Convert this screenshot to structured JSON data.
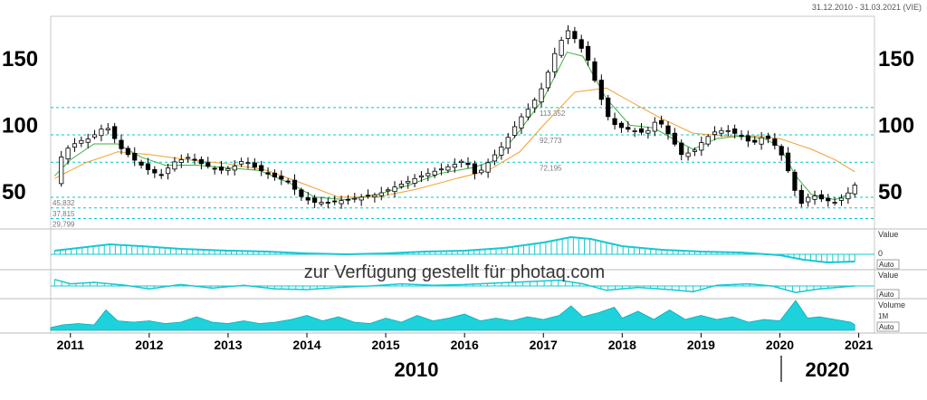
{
  "header": {
    "date_range": "31.12.2010 - 31.03.2021 (VIE)"
  },
  "watermark": "zur Verfügung gestellt für photaq.com",
  "colors": {
    "up_candle": "#ffffff",
    "down_candle": "#000000",
    "ma_short": "#3fae3f",
    "ma_long": "#f0a030",
    "level_lines": "#00c8d0",
    "oscillator": "#16c8d2",
    "volume_fill": "#1ed2dc"
  },
  "bottom_labels": {
    "left_era": "2010",
    "right_era": "2020"
  },
  "panels": {
    "macd": {
      "label": "Value",
      "zero_label": "0",
      "button": "Auto"
    },
    "oscillator": {
      "label": "Value",
      "button": "Auto"
    },
    "volume": {
      "label": "Volume",
      "scale_label": "1M",
      "button": "Auto"
    }
  },
  "chart_data": {
    "type": "candlestick",
    "y_ticks": [
      50,
      100,
      150
    ],
    "ylim": [
      22,
      182
    ],
    "x_ticks": [
      "2011",
      "2012",
      "2013",
      "2014",
      "2015",
      "2016",
      "2017",
      "2018",
      "2019",
      "2020",
      "2021"
    ],
    "x_range": [
      2010.75,
      2021.2
    ],
    "levels": [
      {
        "value": 113.352,
        "label": "113,352"
      },
      {
        "value": 92.773,
        "label": "92,773"
      },
      {
        "value": 72.195,
        "label": "72,195"
      },
      {
        "value": 45.832,
        "label": "45,832"
      },
      {
        "value": 37.815,
        "label": "37,815"
      },
      {
        "value": 29.799,
        "label": "29,799"
      }
    ],
    "close_path": [
      [
        2010.8,
        55
      ],
      [
        2010.9,
        80
      ],
      [
        2011.1,
        88
      ],
      [
        2011.25,
        90
      ],
      [
        2011.45,
        100
      ],
      [
        2011.65,
        82
      ],
      [
        2011.85,
        72
      ],
      [
        2012.0,
        66
      ],
      [
        2012.15,
        62
      ],
      [
        2012.3,
        72
      ],
      [
        2012.5,
        76
      ],
      [
        2012.7,
        70
      ],
      [
        2012.9,
        66
      ],
      [
        2013.05,
        68
      ],
      [
        2013.2,
        74
      ],
      [
        2013.35,
        68
      ],
      [
        2013.55,
        62
      ],
      [
        2013.75,
        58
      ],
      [
        2013.95,
        45
      ],
      [
        2014.1,
        42
      ],
      [
        2014.3,
        42
      ],
      [
        2014.5,
        44
      ],
      [
        2014.7,
        46
      ],
      [
        2014.9,
        48
      ],
      [
        2015.05,
        52
      ],
      [
        2015.25,
        57
      ],
      [
        2015.45,
        62
      ],
      [
        2015.65,
        66
      ],
      [
        2015.85,
        70
      ],
      [
        2016.0,
        74
      ],
      [
        2016.15,
        62
      ],
      [
        2016.3,
        72
      ],
      [
        2016.5,
        86
      ],
      [
        2016.7,
        105
      ],
      [
        2016.85,
        115
      ],
      [
        2017.0,
        130
      ],
      [
        2017.15,
        155
      ],
      [
        2017.3,
        172
      ],
      [
        2017.4,
        165
      ],
      [
        2017.55,
        152
      ],
      [
        2017.7,
        125
      ],
      [
        2017.85,
        102
      ],
      [
        2018.0,
        98
      ],
      [
        2018.15,
        96
      ],
      [
        2018.3,
        94
      ],
      [
        2018.45,
        105
      ],
      [
        2018.6,
        92
      ],
      [
        2018.75,
        78
      ],
      [
        2018.9,
        80
      ],
      [
        2019.05,
        90
      ],
      [
        2019.2,
        96
      ],
      [
        2019.35,
        96
      ],
      [
        2019.5,
        92
      ],
      [
        2019.65,
        86
      ],
      [
        2019.8,
        92
      ],
      [
        2019.9,
        88
      ],
      [
        2020.05,
        75
      ],
      [
        2020.15,
        58
      ],
      [
        2020.25,
        40
      ],
      [
        2020.4,
        48
      ],
      [
        2020.55,
        44
      ],
      [
        2020.7,
        42
      ],
      [
        2020.85,
        48
      ],
      [
        2020.95,
        55
      ]
    ],
    "ma_short": [
      [
        2010.8,
        62
      ],
      [
        2011.0,
        74
      ],
      [
        2011.3,
        86
      ],
      [
        2011.6,
        86
      ],
      [
        2011.9,
        76
      ],
      [
        2012.2,
        70
      ],
      [
        2012.6,
        70
      ],
      [
        2013.0,
        68
      ],
      [
        2013.4,
        66
      ],
      [
        2013.8,
        56
      ],
      [
        2014.1,
        46
      ],
      [
        2014.5,
        44
      ],
      [
        2014.9,
        48
      ],
      [
        2015.3,
        55
      ],
      [
        2015.7,
        64
      ],
      [
        2016.1,
        68
      ],
      [
        2016.4,
        74
      ],
      [
        2016.7,
        96
      ],
      [
        2017.0,
        120
      ],
      [
        2017.3,
        155
      ],
      [
        2017.5,
        152
      ],
      [
        2017.8,
        120
      ],
      [
        2018.1,
        100
      ],
      [
        2018.4,
        98
      ],
      [
        2018.7,
        88
      ],
      [
        2018.9,
        82
      ],
      [
        2019.2,
        90
      ],
      [
        2019.5,
        92
      ],
      [
        2019.8,
        90
      ],
      [
        2020.0,
        84
      ],
      [
        2020.2,
        62
      ],
      [
        2020.4,
        48
      ],
      [
        2020.7,
        44
      ],
      [
        2020.95,
        50
      ]
    ],
    "ma_long": [
      [
        2010.8,
        60
      ],
      [
        2011.2,
        72
      ],
      [
        2011.6,
        80
      ],
      [
        2012.0,
        78
      ],
      [
        2012.5,
        74
      ],
      [
        2013.0,
        71
      ],
      [
        2013.5,
        66
      ],
      [
        2014.0,
        55
      ],
      [
        2014.4,
        46
      ],
      [
        2014.9,
        46
      ],
      [
        2015.4,
        52
      ],
      [
        2015.9,
        60
      ],
      [
        2016.3,
        66
      ],
      [
        2016.7,
        80
      ],
      [
        2017.0,
        100
      ],
      [
        2017.4,
        125
      ],
      [
        2017.8,
        128
      ],
      [
        2018.1,
        118
      ],
      [
        2018.5,
        105
      ],
      [
        2018.9,
        94
      ],
      [
        2019.3,
        92
      ],
      [
        2019.7,
        92
      ],
      [
        2020.0,
        90
      ],
      [
        2020.4,
        82
      ],
      [
        2020.7,
        74
      ],
      [
        2020.95,
        65
      ]
    ],
    "macd": [
      [
        2010.8,
        0.2
      ],
      [
        2011.2,
        0.4
      ],
      [
        2011.5,
        0.55
      ],
      [
        2011.9,
        0.45
      ],
      [
        2012.4,
        0.3
      ],
      [
        2013.0,
        0.2
      ],
      [
        2013.5,
        0.15
      ],
      [
        2014.0,
        0.05
      ],
      [
        2014.5,
        0.0
      ],
      [
        2015.0,
        0.05
      ],
      [
        2015.5,
        0.15
      ],
      [
        2016.0,
        0.2
      ],
      [
        2016.5,
        0.35
      ],
      [
        2017.0,
        0.65
      ],
      [
        2017.35,
        0.95
      ],
      [
        2017.6,
        0.85
      ],
      [
        2018.0,
        0.45
      ],
      [
        2018.5,
        0.25
      ],
      [
        2019.0,
        0.15
      ],
      [
        2019.5,
        0.1
      ],
      [
        2020.0,
        -0.05
      ],
      [
        2020.3,
        -0.3
      ],
      [
        2020.6,
        -0.45
      ],
      [
        2020.95,
        -0.4
      ]
    ],
    "oscillator": [
      [
        2010.8,
        0.9
      ],
      [
        2011.0,
        0.3
      ],
      [
        2011.3,
        0.5
      ],
      [
        2011.7,
        0.1
      ],
      [
        2012.0,
        -0.4
      ],
      [
        2012.4,
        0.2
      ],
      [
        2012.8,
        -0.3
      ],
      [
        2013.2,
        0.1
      ],
      [
        2013.6,
        -0.4
      ],
      [
        2014.0,
        -0.5
      ],
      [
        2014.4,
        -0.2
      ],
      [
        2014.8,
        0.0
      ],
      [
        2015.2,
        0.3
      ],
      [
        2015.6,
        0.1
      ],
      [
        2016.0,
        0.2
      ],
      [
        2016.4,
        0.4
      ],
      [
        2016.8,
        0.6
      ],
      [
        2017.2,
        0.8
      ],
      [
        2017.5,
        0.3
      ],
      [
        2017.8,
        -0.6
      ],
      [
        2018.2,
        -0.2
      ],
      [
        2018.6,
        -0.5
      ],
      [
        2018.9,
        -0.8
      ],
      [
        2019.2,
        0.1
      ],
      [
        2019.6,
        0.3
      ],
      [
        2019.9,
        0.0
      ],
      [
        2020.2,
        -0.9
      ],
      [
        2020.5,
        -0.4
      ],
      [
        2020.95,
        0.0
      ]
    ],
    "volume": [
      [
        2010.75,
        0.1
      ],
      [
        2010.9,
        0.2
      ],
      [
        2011.1,
        0.25
      ],
      [
        2011.3,
        0.2
      ],
      [
        2011.45,
        0.75
      ],
      [
        2011.6,
        0.35
      ],
      [
        2011.8,
        0.3
      ],
      [
        2012.0,
        0.35
      ],
      [
        2012.2,
        0.25
      ],
      [
        2012.4,
        0.3
      ],
      [
        2012.6,
        0.5
      ],
      [
        2012.8,
        0.3
      ],
      [
        2013.0,
        0.25
      ],
      [
        2013.2,
        0.35
      ],
      [
        2013.4,
        0.25
      ],
      [
        2013.6,
        0.3
      ],
      [
        2013.8,
        0.4
      ],
      [
        2014.0,
        0.55
      ],
      [
        2014.2,
        0.35
      ],
      [
        2014.4,
        0.5
      ],
      [
        2014.6,
        0.3
      ],
      [
        2014.8,
        0.25
      ],
      [
        2015.0,
        0.45
      ],
      [
        2015.2,
        0.3
      ],
      [
        2015.4,
        0.55
      ],
      [
        2015.6,
        0.35
      ],
      [
        2015.8,
        0.45
      ],
      [
        2016.0,
        0.6
      ],
      [
        2016.2,
        0.35
      ],
      [
        2016.4,
        0.45
      ],
      [
        2016.6,
        0.35
      ],
      [
        2016.8,
        0.5
      ],
      [
        2017.0,
        0.4
      ],
      [
        2017.2,
        0.55
      ],
      [
        2017.35,
        0.9
      ],
      [
        2017.5,
        0.5
      ],
      [
        2017.7,
        0.65
      ],
      [
        2017.9,
        0.85
      ],
      [
        2018.0,
        0.45
      ],
      [
        2018.2,
        0.7
      ],
      [
        2018.4,
        0.4
      ],
      [
        2018.6,
        0.75
      ],
      [
        2018.8,
        0.4
      ],
      [
        2019.0,
        0.55
      ],
      [
        2019.2,
        0.4
      ],
      [
        2019.4,
        0.5
      ],
      [
        2019.6,
        0.3
      ],
      [
        2019.8,
        0.4
      ],
      [
        2020.0,
        0.35
      ],
      [
        2020.2,
        1.1
      ],
      [
        2020.35,
        0.45
      ],
      [
        2020.5,
        0.5
      ],
      [
        2020.7,
        0.4
      ],
      [
        2020.9,
        0.3
      ],
      [
        2020.95,
        0.2
      ]
    ]
  }
}
